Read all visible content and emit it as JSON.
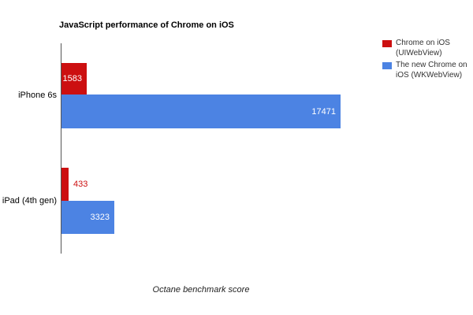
{
  "chart_data": {
    "type": "bar",
    "orientation": "horizontal",
    "title": "JavaScript performance of Chrome on iOS",
    "xlabel": "Octane benchmark score",
    "categories": [
      "iPhone 6s",
      "iPad (4th gen)"
    ],
    "series": [
      {
        "name": "Chrome on iOS (UIWebView)",
        "color": "#cc0f10",
        "values": [
          1583,
          433
        ]
      },
      {
        "name": "The new Chrome on iOS (WKWebView)",
        "color": "#4c83e3",
        "values": [
          17471,
          3323
        ]
      }
    ],
    "xlim": [
      0,
      17471
    ],
    "grid": false,
    "legend_position": "right",
    "value_labels": true,
    "axis_color": "#555555",
    "background_color": "#ffffff"
  }
}
